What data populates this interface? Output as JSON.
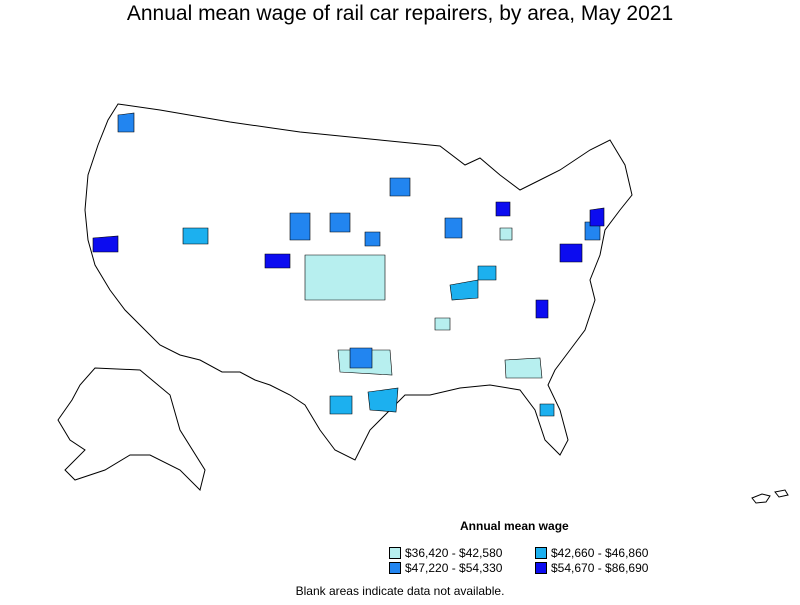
{
  "title": "Annual mean wage of rail car repairers, by area, May 2021",
  "legend": {
    "title": "Annual mean wage",
    "items": [
      {
        "label": "$36,420 - $42,580",
        "color": "#b7efef"
      },
      {
        "label": "$42,660 - $46,860",
        "color": "#1cb0ef"
      },
      {
        "label": "$47,220 - $54,330",
        "color": "#2285f0"
      },
      {
        "label": "$54,670 - $86,690",
        "color": "#0c0cf0"
      }
    ]
  },
  "footnote": "Blank areas indicate data not available."
}
